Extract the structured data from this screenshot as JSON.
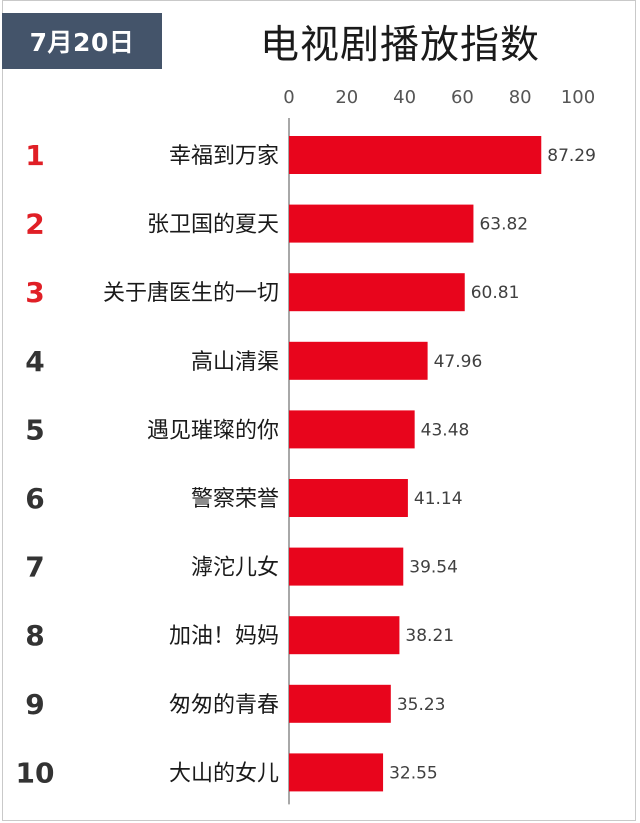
{
  "date_label": "7月20日",
  "title": "电视剧播放指数",
  "chart_data": {
    "type": "bar",
    "orientation": "horizontal",
    "title": "电视剧播放指数",
    "xlim": [
      0,
      100
    ],
    "ticks": [
      0,
      20,
      40,
      60,
      80,
      100
    ],
    "tick_labels": [
      "0",
      "20",
      "40",
      "60",
      "80",
      "100"
    ],
    "ranks": [
      "1",
      "2",
      "3",
      "4",
      "5",
      "6",
      "7",
      "8",
      "9",
      "10"
    ],
    "categories": [
      "幸福到万家",
      "张卫国的夏天",
      "关于唐医生的一切",
      "高山清渠",
      "遇见璀璨的你",
      "警察荣誉",
      "滹沱儿女",
      "加油！妈妈",
      "匆匆的青春",
      "大山的女儿"
    ],
    "values": [
      87.29,
      63.82,
      60.81,
      47.96,
      43.48,
      41.14,
      39.54,
      38.21,
      35.23,
      32.55
    ],
    "value_labels": [
      "87.29",
      "63.82",
      "60.81",
      "47.96",
      "43.48",
      "41.14",
      "39.54",
      "38.21",
      "35.23",
      "32.55"
    ],
    "grid": false,
    "legend": "none"
  },
  "colors": {
    "bar": "#e8051c",
    "rank_top3": "#e01f26",
    "rank_rest": "#333333",
    "badge": "#44546a",
    "axis": "#8c8c8c"
  }
}
